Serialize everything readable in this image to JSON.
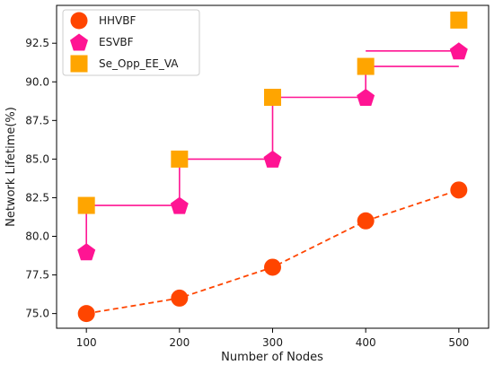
{
  "chart_data": {
    "type": "line",
    "title": "",
    "xlabel": "Number of Nodes",
    "ylabel": "Network Lifetime(%)",
    "x": [
      100,
      200,
      300,
      400,
      500
    ],
    "x_ticks": [
      "100",
      "200",
      "300",
      "400",
      "500"
    ],
    "xlim": [
      68,
      532
    ],
    "y_ticks": [
      "75.0",
      "77.5",
      "80.0",
      "82.5",
      "85.0",
      "87.5",
      "90.0",
      "92.5"
    ],
    "y_tick_values": [
      75.0,
      77.5,
      80.0,
      82.5,
      85.0,
      87.5,
      90.0,
      92.5
    ],
    "ylim": [
      74.05,
      94.95
    ],
    "grid": false,
    "legend_position": "top-left",
    "series": [
      {
        "name": "HHVBF",
        "values": [
          75,
          76,
          78,
          81,
          83
        ],
        "color": "#ff4500",
        "marker": "circle",
        "line_style": "dashed"
      },
      {
        "name": "ESVBF",
        "values": [
          79,
          82,
          85,
          89,
          92
        ],
        "color": "#ff1493",
        "marker": "pentagon",
        "line_style": "none"
      },
      {
        "name": "Se_Opp_EE_VA",
        "values": [
          82,
          85,
          89,
          91,
          94
        ],
        "color": "#ffa500",
        "marker": "square",
        "line_style": "none"
      }
    ],
    "step_line": {
      "color": "#ff1493",
      "style": "steps-post through ESVBF base with vertical drops"
    }
  }
}
